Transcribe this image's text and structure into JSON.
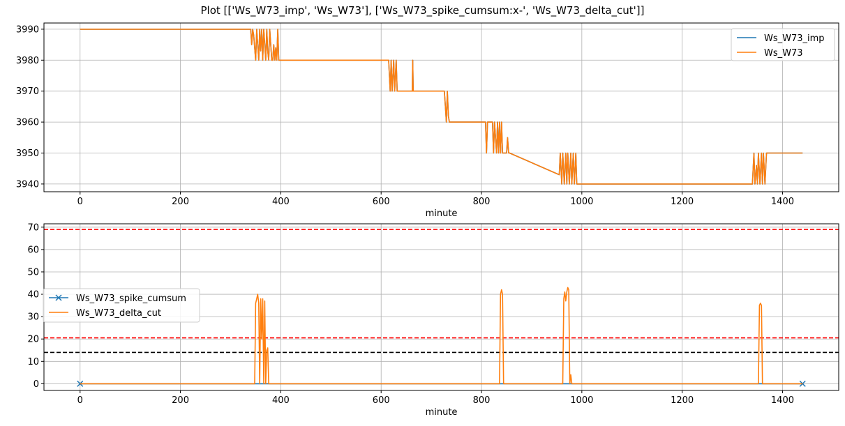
{
  "title": "Plot [['Ws_W73_imp', 'Ws_W73'], ['Ws_W73_spike_cumsum:x-', 'Ws_W73_delta_cut']]",
  "colors": {
    "blue": "#1f77b4",
    "orange": "#ff7f0e",
    "red": "#ff0000",
    "black": "#000000",
    "grid": "#b0b0b0"
  },
  "chart_data": [
    {
      "type": "line",
      "xlabel": "minute",
      "ylabel": "",
      "xlim": [
        -72,
        1512
      ],
      "ylim": [
        3937.5,
        3992
      ],
      "xticks": [
        0,
        200,
        400,
        600,
        800,
        1000,
        1200,
        1400
      ],
      "yticks": [
        3940,
        3950,
        3960,
        3970,
        3980,
        3990
      ],
      "grid": true,
      "legend": "upper right",
      "series": [
        {
          "name": "Ws_W73_imp",
          "color": "#1f77b4",
          "x": [
            0,
            340,
            342,
            344,
            346,
            350,
            352,
            354,
            356,
            358,
            360,
            362,
            364,
            366,
            368,
            370,
            372,
            374,
            376,
            378,
            380,
            382,
            384,
            386,
            388,
            390,
            392,
            394,
            396,
            398,
            615,
            618,
            620,
            622,
            625,
            627,
            630,
            632,
            634,
            662,
            663,
            664,
            726,
            728,
            730,
            732,
            734,
            736,
            808,
            810,
            812,
            822,
            824,
            826,
            830,
            832,
            834,
            836,
            838,
            840,
            842,
            850,
            852,
            854,
            856,
            955,
            957,
            960,
            962,
            965,
            968,
            970,
            972,
            975,
            978,
            980,
            983,
            985,
            988,
            990,
            993,
            1340,
            1343,
            1345,
            1348,
            1350,
            1352,
            1355,
            1358,
            1360,
            1362,
            1365,
            1368,
            1370,
            1440
          ],
          "y": [
            3990,
            3990,
            3985,
            3990,
            3988,
            3980,
            3990,
            3985,
            3980,
            3990,
            3983,
            3990,
            3980,
            3990,
            3985,
            3980,
            3990,
            3983,
            3980,
            3990,
            3985,
            3980,
            3980,
            3985,
            3980,
            3984,
            3980,
            3990,
            3980,
            3980,
            3980,
            3970,
            3980,
            3970,
            3980,
            3970,
            3980,
            3970,
            3970,
            3970,
            3980,
            3970,
            3970,
            3965,
            3960,
            3970,
            3962,
            3960,
            3960,
            3950,
            3960,
            3960,
            3950,
            3960,
            3950,
            3960,
            3950,
            3960,
            3950,
            3960,
            3950,
            3950,
            3955,
            3950,
            3950,
            3943,
            3950,
            3940,
            3950,
            3940,
            3950,
            3940,
            3950,
            3940,
            3950,
            3940,
            3950,
            3940,
            3950,
            3940,
            3940,
            3940,
            3950,
            3940,
            3946,
            3940,
            3950,
            3940,
            3950,
            3940,
            3950,
            3940,
            3950,
            3950,
            3950
          ]
        },
        {
          "name": "Ws_W73",
          "color": "#ff7f0e",
          "x": [
            0,
            340,
            342,
            344,
            346,
            350,
            352,
            354,
            356,
            358,
            360,
            362,
            364,
            366,
            368,
            370,
            372,
            374,
            376,
            378,
            380,
            382,
            384,
            386,
            388,
            390,
            392,
            394,
            396,
            398,
            615,
            618,
            620,
            622,
            625,
            627,
            630,
            632,
            634,
            662,
            663,
            664,
            726,
            728,
            730,
            732,
            734,
            736,
            808,
            810,
            812,
            822,
            824,
            826,
            830,
            832,
            834,
            836,
            838,
            840,
            842,
            850,
            852,
            854,
            856,
            955,
            957,
            960,
            962,
            965,
            968,
            970,
            972,
            975,
            978,
            980,
            983,
            985,
            988,
            990,
            993,
            1340,
            1343,
            1345,
            1348,
            1350,
            1352,
            1355,
            1358,
            1360,
            1362,
            1365,
            1368,
            1370,
            1440
          ],
          "y": [
            3990,
            3990,
            3985,
            3990,
            3988,
            3980,
            3990,
            3985,
            3980,
            3990,
            3983,
            3990,
            3980,
            3990,
            3985,
            3980,
            3990,
            3983,
            3980,
            3990,
            3985,
            3980,
            3980,
            3985,
            3980,
            3984,
            3980,
            3990,
            3980,
            3980,
            3980,
            3970,
            3980,
            3970,
            3980,
            3970,
            3980,
            3970,
            3970,
            3970,
            3980,
            3970,
            3970,
            3965,
            3960,
            3970,
            3962,
            3960,
            3960,
            3950,
            3960,
            3960,
            3950,
            3960,
            3950,
            3960,
            3950,
            3960,
            3950,
            3960,
            3950,
            3950,
            3955,
            3950,
            3950,
            3943,
            3950,
            3940,
            3950,
            3940,
            3950,
            3940,
            3950,
            3940,
            3950,
            3940,
            3950,
            3940,
            3950,
            3940,
            3940,
            3940,
            3950,
            3940,
            3946,
            3940,
            3950,
            3940,
            3950,
            3940,
            3950,
            3940,
            3950,
            3950,
            3950
          ]
        }
      ]
    },
    {
      "type": "line",
      "xlabel": "minute",
      "ylabel": "",
      "xlim": [
        -72,
        1512
      ],
      "ylim": [
        -3,
        71.5
      ],
      "xticks": [
        0,
        200,
        400,
        600,
        800,
        1000,
        1200,
        1400
      ],
      "yticks": [
        0,
        10,
        20,
        30,
        40,
        50,
        60,
        70
      ],
      "grid": true,
      "legend": "center left",
      "hlines": [
        {
          "y": 69,
          "color": "#ff0000",
          "style": "dashed"
        },
        {
          "y": 20.5,
          "color": "#ff0000",
          "style": "dashed"
        },
        {
          "y": 14,
          "color": "#000000",
          "style": "dashed"
        }
      ],
      "series": [
        {
          "name": "Ws_W73_spike_cumsum",
          "color": "#1f77b4",
          "marker": "x",
          "x": [
            0,
            1440
          ],
          "y": [
            0,
            0
          ]
        },
        {
          "name": "Ws_W73_delta_cut",
          "color": "#ff7f0e",
          "x": [
            0,
            348,
            350,
            352,
            354,
            356,
            358,
            360,
            362,
            364,
            366,
            368,
            370,
            372,
            374,
            376,
            378,
            380,
            382,
            836,
            838,
            840,
            842,
            844,
            962,
            964,
            966,
            968,
            970,
            972,
            974,
            976,
            978,
            980,
            982,
            984,
            1352,
            1354,
            1356,
            1358,
            1360,
            1362,
            1440
          ],
          "y": [
            0,
            0,
            36,
            38,
            40,
            36,
            0,
            38,
            20,
            38,
            0,
            37,
            0,
            15,
            16,
            0,
            0,
            0,
            0,
            0,
            40,
            42,
            40,
            0,
            0,
            38,
            41,
            37,
            41,
            43,
            42,
            0,
            4,
            0,
            0,
            0,
            0,
            35,
            36,
            35,
            0,
            0,
            0
          ]
        }
      ]
    }
  ]
}
